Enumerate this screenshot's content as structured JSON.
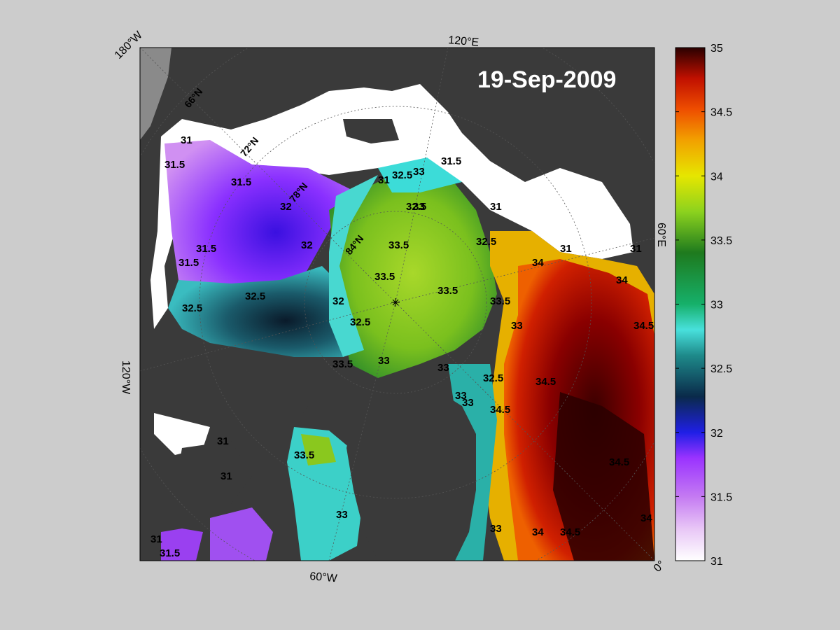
{
  "map": {
    "date": "19-Sep-2009",
    "coordinate_labels": [
      "180°W",
      "120°E",
      "60°E",
      "0°",
      "60°W",
      "120°W",
      "66°N",
      "72°N",
      "78°N",
      "84°N"
    ],
    "contour_labels": [
      "31",
      "31.5",
      "31.5",
      "31.5",
      "31.5",
      "31.5",
      "31",
      "31",
      "31.5",
      "32",
      "32",
      "32",
      "32.5",
      "32.5",
      "32.5",
      "32.5",
      "32.5",
      "32.5",
      "32.5",
      "33",
      "33",
      "33",
      "33",
      "33",
      "33",
      "33",
      "33",
      "33",
      "33.5",
      "33.5",
      "33.5",
      "33.5",
      "33.5",
      "33.5",
      "34",
      "34",
      "34",
      "34",
      "34.5",
      "34.5",
      "34.5",
      "34.5",
      "34.5",
      "31",
      "31",
      "31",
      "31",
      "31"
    ]
  },
  "colorbar": {
    "min": 31,
    "max": 35,
    "ticks": [
      "31",
      "31.5",
      "32",
      "32.5",
      "33",
      "33.5",
      "34",
      "34.5",
      "35"
    ],
    "stops": [
      "#ffffff",
      "#dca6f2",
      "#a64dff",
      "#7a1ff2",
      "#1f1fe6",
      "#0a2a4a",
      "#1e7a80",
      "#3cdcd8",
      "#16a45c",
      "#1e7a1e",
      "#8cd21e",
      "#e6e600",
      "#f2a000",
      "#ee4d00",
      "#c01000",
      "#7a0000",
      "#2a0000"
    ]
  },
  "colors": {
    "background": "#cccccc",
    "land": "#3a3a3a",
    "ice": "#ffffff",
    "frame": "#000000"
  }
}
